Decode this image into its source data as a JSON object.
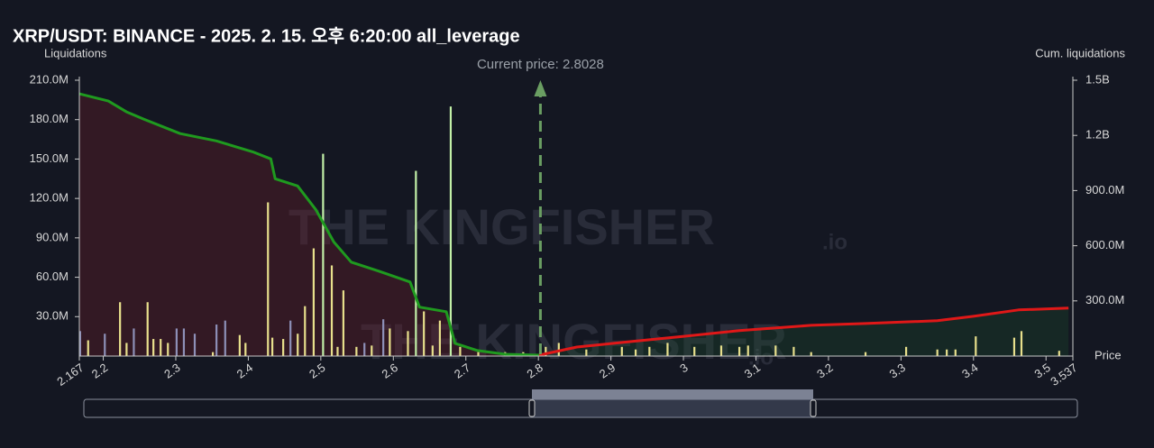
{
  "chart_data": {
    "type": "bar",
    "title": "XRP/USDT: BINANCE - 2025. 2. 15. 오후 6:20:00 all_leverage",
    "y_label": "Liquidations",
    "y2_label": "Cum. liquidations",
    "x_label": "Price",
    "watermark": "THE KINGFISHER",
    "watermark_suffix": ".io",
    "current_price": {
      "value": 2.8028,
      "label": "Current price: 2.8028"
    },
    "current_price_color": "#6a9e62",
    "xlim": [
      2.167,
      3.537
    ],
    "xticks": [
      2.167,
      2.2,
      2.3,
      2.4,
      2.5,
      2.6,
      2.7,
      2.8,
      2.9,
      3,
      3.1,
      3.2,
      3.3,
      3.4,
      3.5,
      3.537
    ],
    "ylim": [
      0,
      210000000
    ],
    "yticks": [
      {
        "value": 30000000,
        "label": "30.0M"
      },
      {
        "value": 60000000,
        "label": "60.0M"
      },
      {
        "value": 90000000,
        "label": "90.0M"
      },
      {
        "value": 120000000,
        "label": "120.0M"
      },
      {
        "value": 150000000,
        "label": "150.0M"
      },
      {
        "value": 180000000,
        "label": "180.0M"
      },
      {
        "value": 210000000,
        "label": "210.0M"
      }
    ],
    "y2lim": [
      0,
      1500000000
    ],
    "y2ticks": [
      {
        "value": 300000000,
        "label": "300.0M"
      },
      {
        "value": 600000000,
        "label": "600.0M"
      },
      {
        "value": 900000000,
        "label": "900.0M"
      },
      {
        "value": 1200000000,
        "label": "1.2B"
      },
      {
        "value": 1500000000,
        "label": "1.5B"
      }
    ],
    "bars": {
      "x": [
        2.168,
        2.179,
        2.202,
        2.223,
        2.232,
        2.242,
        2.261,
        2.269,
        2.279,
        2.289,
        2.301,
        2.311,
        2.326,
        2.351,
        2.356,
        2.368,
        2.388,
        2.396,
        2.427,
        2.433,
        2.448,
        2.458,
        2.468,
        2.478,
        2.49,
        2.503,
        2.515,
        2.523,
        2.531,
        2.549,
        2.56,
        2.57,
        2.586,
        2.595,
        2.62,
        2.631,
        2.642,
        2.654,
        2.664,
        2.679,
        2.692,
        2.717,
        2.754,
        2.779,
        2.81,
        2.828,
        2.866,
        2.915,
        2.934,
        2.953,
        2.978,
        3.015,
        3.052,
        3.077,
        3.089,
        3.127,
        3.152,
        3.176,
        3.251,
        3.307,
        3.35,
        3.363,
        3.375,
        3.403,
        3.456,
        3.466,
        3.518
      ],
      "values": [
        19000000,
        12000000,
        17000000,
        41000000,
        10000000,
        21000000,
        41000000,
        13000000,
        13000000,
        10000000,
        21000000,
        21000000,
        17000000,
        3000000,
        24000000,
        27000000,
        16000000,
        10000000,
        117000000,
        14000000,
        13000000,
        27000000,
        17000000,
        38000000,
        82000000,
        154000000,
        69000000,
        7000000,
        50000000,
        7000000,
        10000000,
        8000000,
        28000000,
        21000000,
        19000000,
        141000000,
        34000000,
        8000000,
        27000000,
        190000000,
        7000000,
        3000000,
        3000000,
        3000000,
        7000000,
        10000000,
        5000000,
        7000000,
        5000000,
        7000000,
        10000000,
        7000000,
        8000000,
        7000000,
        8000000,
        8000000,
        7000000,
        3000000,
        3000000,
        7000000,
        5000000,
        5000000,
        5000000,
        15000000,
        14000000,
        19000000,
        4000000
      ],
      "colors": [
        "#8d90b8",
        "#e8e08c",
        "#8d90b8",
        "#e8e08c",
        "#e8e08c",
        "#8d90b8",
        "#e8e08c",
        "#e8e08c",
        "#e8e08c",
        "#e8e08c",
        "#8d90b8",
        "#8d90b8",
        "#8d90b8",
        "#e8e08c",
        "#8d90b8",
        "#8d90b8",
        "#e8e08c",
        "#e8e08c",
        "#e8e08c",
        "#e8e08c",
        "#e8e08c",
        "#8d90b8",
        "#e8e08c",
        "#e8e08c",
        "#e8e08c",
        "#c2f0a8",
        "#e8e08c",
        "#e8e08c",
        "#e8e08c",
        "#e8e08c",
        "#8d90b8",
        "#e8e08c",
        "#8d90b8",
        "#e8e08c",
        "#e8e08c",
        "#c2f0a8",
        "#e8e08c",
        "#e8e08c",
        "#e8e08c",
        "#c2f0a8",
        "#e8e08c",
        "#e8e08c",
        "#e8e08c",
        "#e8e08c",
        "#e8e08c",
        "#e8e08c",
        "#e8e08c",
        "#e8e08c",
        "#e8e08c",
        "#e8e08c",
        "#e8e08c",
        "#e8e08c",
        "#e8e08c",
        "#e8e08c",
        "#e8e08c",
        "#e8e08c",
        "#e8e08c",
        "#e8e08c",
        "#e8e08c",
        "#e8e08c",
        "#e8e08c",
        "#e8e08c",
        "#e8e08c",
        "#e8e08c",
        "#e8e08c",
        "#e8e08c",
        "#e8e08c"
      ]
    },
    "series": [
      {
        "axis": "y2",
        "color": "#1f9a1f",
        "fill": "rgba(110,30,40,0.35)",
        "x": [
          2.167,
          2.207,
          2.232,
          2.256,
          2.306,
          2.356,
          2.406,
          2.431,
          2.437,
          2.468,
          2.493,
          2.518,
          2.542,
          2.58,
          2.623,
          2.636,
          2.673,
          2.685,
          2.716,
          2.754,
          2.801
        ],
        "values": [
          1426000000,
          1387000000,
          1328000000,
          1288000000,
          1210000000,
          1170000000,
          1111000000,
          1072000000,
          964000000,
          925000000,
          797000000,
          620000000,
          511000000,
          462000000,
          403000000,
          266000000,
          241000000,
          69000000,
          30000000,
          10000000,
          5000000
        ]
      },
      {
        "axis": "y2",
        "color": "#e01818",
        "fill": "rgba(30,80,45,0.3)",
        "x": [
          2.801,
          2.853,
          2.928,
          3.002,
          3.077,
          3.176,
          3.251,
          3.35,
          3.4,
          3.462,
          3.531
        ],
        "values": [
          5000000,
          49000000,
          79000000,
          108000000,
          138000000,
          167000000,
          177000000,
          192000000,
          216000000,
          251000000,
          261000000
        ]
      }
    ]
  }
}
